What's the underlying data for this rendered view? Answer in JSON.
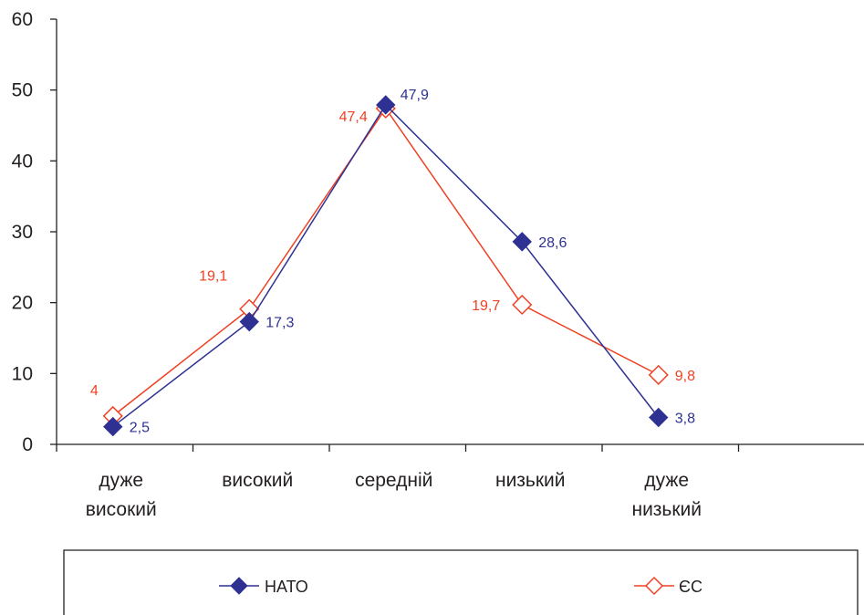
{
  "chart_data": {
    "type": "line",
    "categories": [
      [
        "дуже",
        "високий"
      ],
      [
        "високий"
      ],
      [
        "середній"
      ],
      [
        "низький"
      ],
      [
        "дуже",
        "низький"
      ]
    ],
    "ylim": [
      0,
      60
    ],
    "yticks": [
      "0",
      "10",
      "20",
      "30",
      "40",
      "50",
      "60"
    ],
    "grid": false,
    "legend_position": "bottom",
    "series": [
      {
        "name": "НАТО",
        "values": [
          2.5,
          17.3,
          47.9,
          28.6,
          3.8
        ],
        "labels": [
          "2,5",
          "17,3",
          "47,9",
          "28,6",
          "3,8"
        ],
        "color": "#2e3192",
        "marker": "filled-diamond"
      },
      {
        "name": "ЄС",
        "values": [
          4,
          19.1,
          47.4,
          19.7,
          9.8
        ],
        "labels": [
          "4",
          "19,1",
          "47,4",
          "19,7",
          "9,8"
        ],
        "color": "#ef4123",
        "marker": "hollow-diamond"
      }
    ]
  }
}
